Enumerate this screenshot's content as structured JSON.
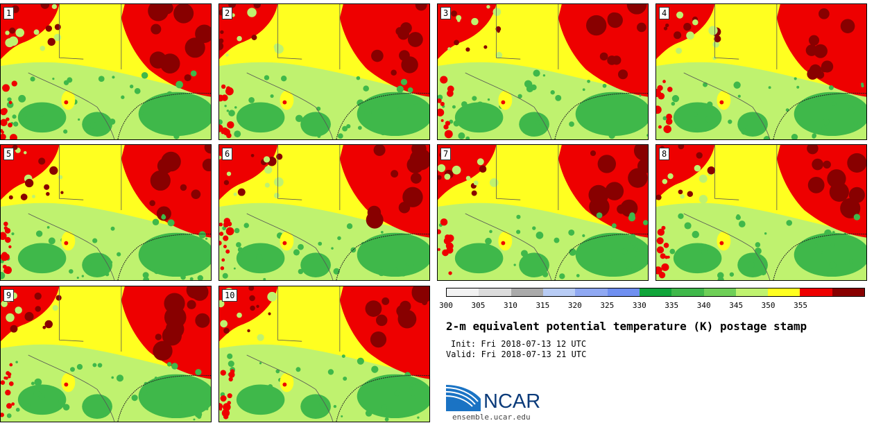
{
  "panels": [
    {
      "label": "1"
    },
    {
      "label": "2"
    },
    {
      "label": "3"
    },
    {
      "label": "4"
    },
    {
      "label": "5"
    },
    {
      "label": "6"
    },
    {
      "label": "7"
    },
    {
      "label": "8"
    },
    {
      "label": "9"
    },
    {
      "label": "10"
    }
  ],
  "colorbar": {
    "colors": [
      "#f2f2f2",
      "#dcdcdc",
      "#aaaaaa",
      "#b8ccf5",
      "#8fa8f2",
      "#6f8ff0",
      "#10a53a",
      "#3fb84a",
      "#6ecf57",
      "#bff26f",
      "#ffff20",
      "#ee0000",
      "#880000"
    ],
    "ticks": [
      "300",
      "305",
      "310",
      "315",
      "320",
      "325",
      "330",
      "335",
      "340",
      "345",
      "350",
      "355"
    ]
  },
  "title": "2-m equivalent potential temperature (K) postage stamp",
  "init": "Init: Fri 2018-07-13 12 UTC",
  "valid": "Valid: Fri 2018-07-13 21 UTC",
  "logo": {
    "text": "NCAR",
    "site": "ensemble.ucar.edu"
  }
}
